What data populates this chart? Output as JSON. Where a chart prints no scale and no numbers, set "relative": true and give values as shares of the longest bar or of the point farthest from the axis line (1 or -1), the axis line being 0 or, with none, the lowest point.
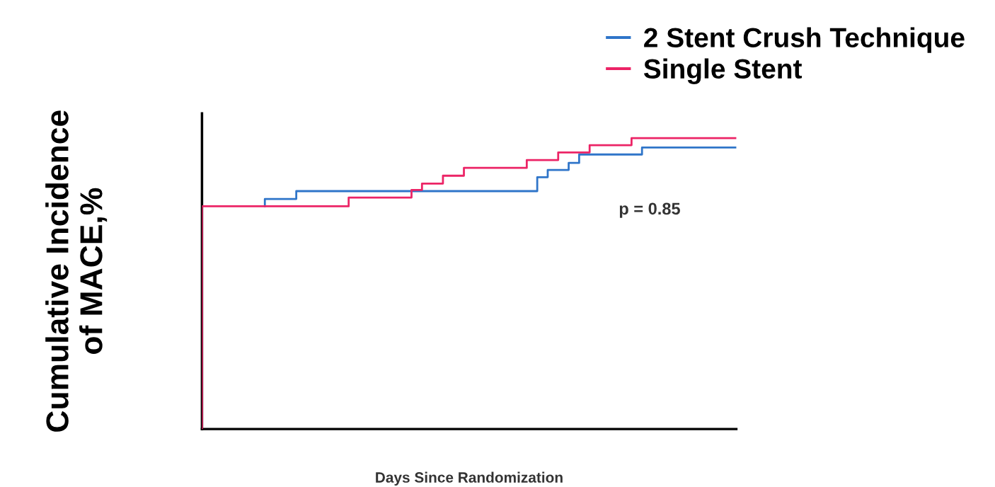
{
  "chart_data": {
    "type": "step",
    "relative": true,
    "xlabel": "Days Since Randomization",
    "ylabel": "Cumulative Incidence\nof MACE,%",
    "legend": "top right",
    "grid": false,
    "categories": [
      null,
      null,
      null,
      null,
      null,
      null,
      null,
      null,
      null,
      null,
      null,
      null,
      null,
      null,
      null,
      null,
      null,
      null,
      null,
      null,
      null,
      null,
      null,
      null,
      null,
      null,
      null,
      null,
      null,
      null,
      null,
      null,
      null,
      null,
      null,
      null,
      null,
      null,
      null,
      null,
      null,
      null,
      null,
      null,
      null,
      null,
      null,
      null,
      null,
      null,
      null,
      null
    ],
    "series": [
      {
        "name": "2 Stent Crush Technique",
        "color": "#2f75c9",
        "values": [
          null,
          null,
          null,
          null,
          null,
          null,
          0.766,
          0.791,
          0.791,
          0.791,
          0.818,
          0.818,
          0.818,
          0.818,
          0.818,
          0.818,
          0.818,
          0.818,
          0.818,
          0.818,
          0.818,
          0.818,
          0.818,
          0.818,
          0.818,
          0.818,
          0.818,
          0.818,
          0.818,
          0.818,
          0.818,
          0.818,
          0.818,
          0.866,
          0.891,
          0.891,
          0.915,
          0.944,
          0.944,
          0.944,
          0.944,
          0.944,
          0.944,
          0.968,
          0.968,
          0.968,
          0.968,
          0.968,
          0.968,
          0.968,
          0.968,
          0.968
        ]
      },
      {
        "name": "Single Stent",
        "color": "#ec2466",
        "values": [
          0,
          0.766,
          0.766,
          0.766,
          0.766,
          0.766,
          0.766,
          0.766,
          0.766,
          0.766,
          0.766,
          0.766,
          0.766,
          0.766,
          0.766,
          0.796,
          0.796,
          0.796,
          0.796,
          0.796,
          0.796,
          0.822,
          0.844,
          0.844,
          0.871,
          0.871,
          0.898,
          0.898,
          0.898,
          0.898,
          0.898,
          0.898,
          0.925,
          0.925,
          0.925,
          0.951,
          0.951,
          0.951,
          0.976,
          0.976,
          0.976,
          0.976,
          1.0,
          1.0,
          1.0,
          1.0,
          1.0,
          1.0,
          1.0,
          1.0,
          1.0,
          1.0
        ]
      }
    ],
    "annotations": [
      "p = 0.85"
    ]
  }
}
